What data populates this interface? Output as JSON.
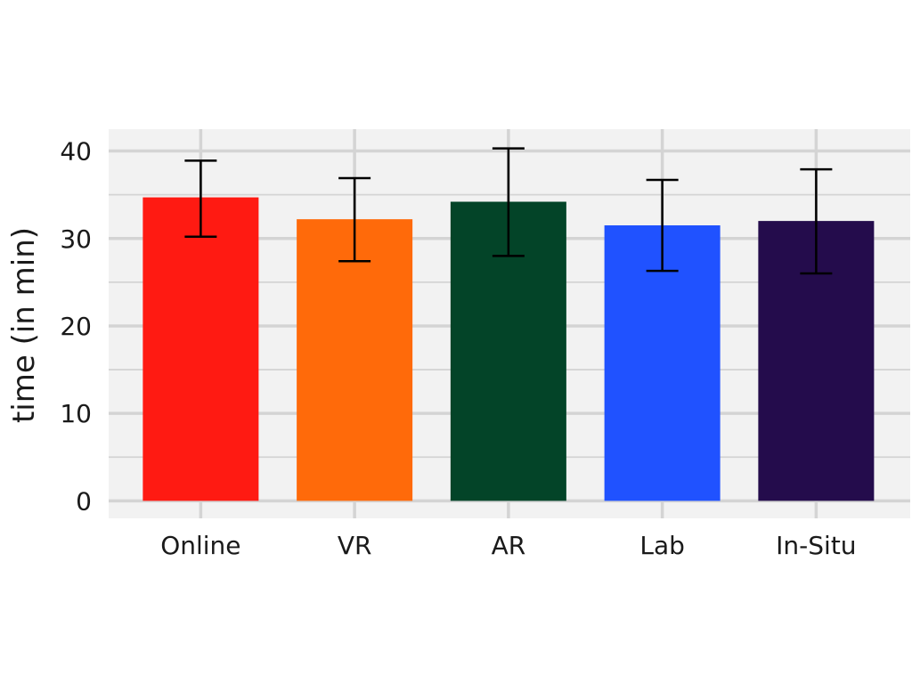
{
  "chart_data": {
    "type": "bar",
    "title": "",
    "xlabel": "",
    "ylabel": "time (in min)",
    "categories": [
      "Online",
      "VR",
      "AR",
      "Lab",
      "In-Situ"
    ],
    "values": [
      34.7,
      32.2,
      34.2,
      31.5,
      32.0
    ],
    "error_low": [
      30.2,
      27.4,
      28.0,
      26.3,
      26.0
    ],
    "error_high": [
      38.9,
      36.9,
      40.3,
      36.7,
      37.9
    ],
    "colors": [
      "#ff1a12",
      "#ff6a0a",
      "#034428",
      "#2052ff",
      "#240c4c"
    ],
    "ylim": [
      -2,
      42.5
    ],
    "yticks": [
      0,
      10,
      20,
      30,
      40
    ],
    "grid": true,
    "background": "#f2f2f2",
    "grid_color": "#d4d4d4"
  }
}
